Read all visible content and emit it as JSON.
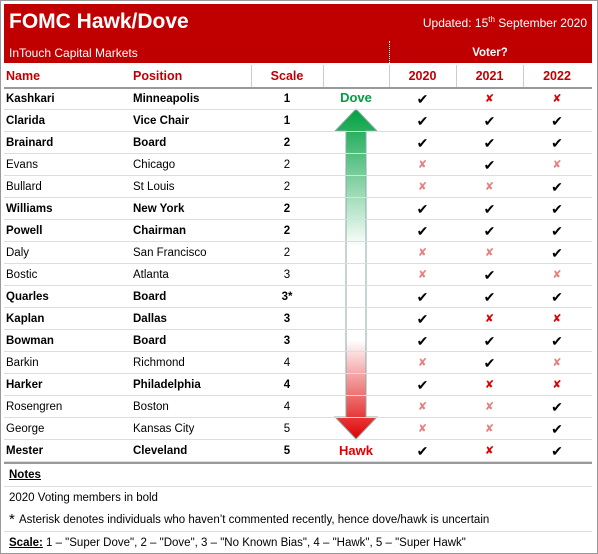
{
  "header": {
    "title": "FOMC Hawk/Dove",
    "updated": [
      "Updated: 15",
      "th",
      "September 2020"
    ],
    "subtitle": "InTouch Capital Markets",
    "voter": "Voter?"
  },
  "table": {
    "columns": [
      "Name",
      "Position",
      "Scale",
      "2020",
      "2021",
      "2022"
    ],
    "dove": "Dove",
    "hawk": "Hawk",
    "rows": [
      {
        "name": "Kashkari",
        "position": "Minneapolis",
        "scale": 1,
        "bold": true,
        "votes": [
          "✔",
          "✘",
          "✘"
        ]
      },
      {
        "name": "Clarida",
        "position": "Vice Chair",
        "scale": 1,
        "bold": true,
        "votes": [
          "✔",
          "✔",
          "✔"
        ]
      },
      {
        "name": "Brainard",
        "position": "Board",
        "scale": 2,
        "bold": true,
        "votes": [
          "✔",
          "✔",
          "✔"
        ]
      },
      {
        "name": "Evans",
        "position": "Chicago",
        "scale": 2,
        "bold": false,
        "votes": [
          "✘",
          "✔",
          "✘"
        ]
      },
      {
        "name": "Bullard",
        "position": "St Louis",
        "scale": 2,
        "bold": false,
        "votes": [
          "✘",
          "✘",
          "✔"
        ]
      },
      {
        "name": "Williams",
        "position": "New York",
        "scale": 2,
        "bold": true,
        "votes": [
          "✔",
          "✔",
          "✔"
        ]
      },
      {
        "name": "Powell",
        "position": "Chairman",
        "scale": 2,
        "bold": true,
        "votes": [
          "✔",
          "✔",
          "✔"
        ]
      },
      {
        "name": "Daly",
        "position": "San Francisco",
        "scale": 2,
        "bold": false,
        "votes": [
          "✘",
          "✘",
          "✔"
        ]
      },
      {
        "name": "Bostic",
        "position": "Atlanta",
        "scale": 3,
        "bold": false,
        "votes": [
          "✘",
          "✔",
          "✘"
        ]
      },
      {
        "name": "Quarles",
        "position": "Board",
        "scale": "3*",
        "bold": true,
        "votes": [
          "✔",
          "✔",
          "✔"
        ]
      },
      {
        "name": "Kaplan",
        "position": "Dallas",
        "scale": 3,
        "bold": true,
        "votes": [
          "✔",
          "✘",
          "✘"
        ]
      },
      {
        "name": "Bowman",
        "position": "Board",
        "scale": 3,
        "bold": true,
        "votes": [
          "✔",
          "✔",
          "✔"
        ]
      },
      {
        "name": "Barkin",
        "position": "Richmond",
        "scale": 4,
        "bold": false,
        "votes": [
          "✘",
          "✔",
          "✘"
        ]
      },
      {
        "name": "Harker",
        "position": "Philadelphia",
        "scale": 4,
        "bold": true,
        "votes": [
          "✔",
          "✘",
          "✘"
        ]
      },
      {
        "name": "Rosengren",
        "position": "Boston",
        "scale": 4,
        "bold": false,
        "votes": [
          "✘",
          "✘",
          "✔"
        ]
      },
      {
        "name": "George",
        "position": "Kansas City",
        "scale": 5,
        "bold": false,
        "votes": [
          "✘",
          "✘",
          "✔"
        ]
      },
      {
        "name": "Mester",
        "position": "Cleveland",
        "scale": 5,
        "bold": true,
        "votes": [
          "✔",
          "✘",
          "✔"
        ]
      }
    ]
  },
  "notes": {
    "heading": "Notes",
    "bold_note": "2020 Voting members in bold",
    "asterisk": "*",
    "asterisk_note": "Asterisk denotes individuals who haven’t commented recently, hence dove/hawk is uncertain",
    "scale_label": "Scale:",
    "scale_text": "1 – \"Super Dove\", 2 – \"Dove\", 3 – \"No Known Bias\", 4 – \"Hawk\", 5 – \"Super Hawk\""
  }
}
